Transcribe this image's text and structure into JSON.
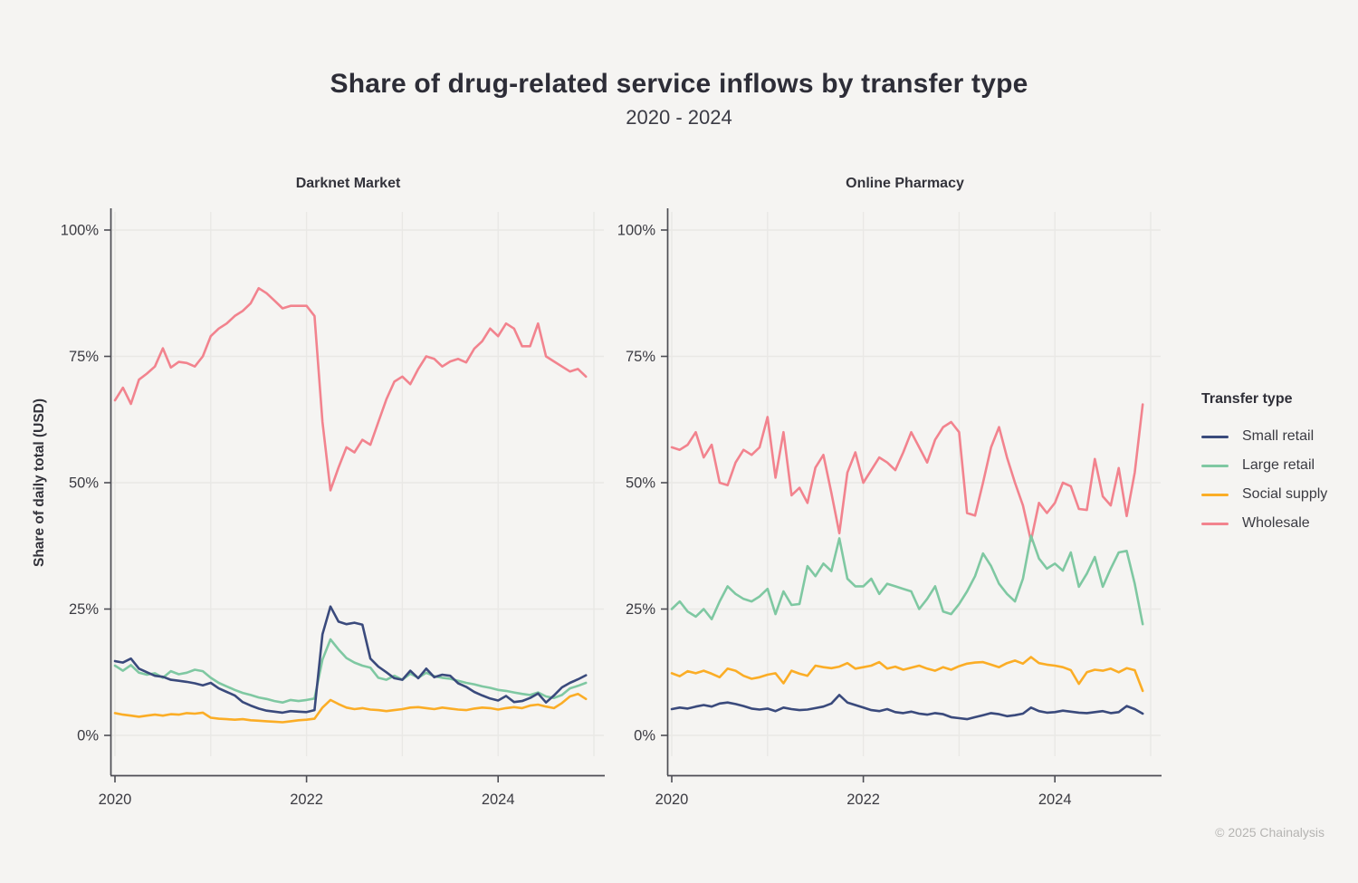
{
  "page": {
    "title": "Share of drug-related service inflows by transfer type",
    "subtitle": "2020 - 2024",
    "footer": "© 2025 Chainalysis"
  },
  "theme": {
    "background": "#f5f4f2",
    "grid_color": "#e9e8e5",
    "axis_color": "#4d4d54",
    "tick_text_color": "#3b3b42"
  },
  "y_axis_title": "Share of daily total (USD)",
  "legend": {
    "title": "Transfer type",
    "position": "right",
    "items": [
      {
        "label": "Small retail",
        "color": "#3a4a7c"
      },
      {
        "label": "Large retail",
        "color": "#7fc8a2"
      },
      {
        "label": "Social supply",
        "color": "#fbad26"
      },
      {
        "label": "Wholesale",
        "color": "#f2838e"
      }
    ]
  },
  "chart_data": [
    {
      "type": "line",
      "title": "Darknet Market",
      "xlabel": "",
      "ylabel": "Share of daily total (USD)",
      "ylim": [
        0,
        100
      ],
      "grid": true,
      "x_unit": "month",
      "x_start_year": 2020,
      "points_per_year": 12,
      "x_gridline_years": [
        2020,
        2021,
        2022,
        2023,
        2024,
        2025
      ],
      "x_ticks": [
        {
          "year": 2020,
          "label": "2020"
        },
        {
          "year": 2022,
          "label": "2022"
        },
        {
          "year": 2024,
          "label": "2024"
        }
      ],
      "y_ticks": [
        {
          "value": 0,
          "label": "0%"
        },
        {
          "value": 25,
          "label": "25%"
        },
        {
          "value": 50,
          "label": "50%"
        },
        {
          "value": 75,
          "label": "75%"
        },
        {
          "value": 100,
          "label": "100%"
        }
      ],
      "series": [
        {
          "name": "Small retail",
          "color": "#3a4a7c",
          "values": [
            14.7,
            14.4,
            15.2,
            13.2,
            12.5,
            11.8,
            11.6,
            11.0,
            10.8,
            10.6,
            10.3,
            9.9,
            10.4,
            9.3,
            8.6,
            7.9,
            6.6,
            5.9,
            5.3,
            4.9,
            4.7,
            4.5,
            4.8,
            4.7,
            4.6,
            5.0,
            20.0,
            25.5,
            22.5,
            22.0,
            22.3,
            21.9,
            15.2,
            13.6,
            12.5,
            11.3,
            11.0,
            12.8,
            11.3,
            13.2,
            11.5,
            12.0,
            11.8,
            10.3,
            9.6,
            8.6,
            7.9,
            7.3,
            6.9,
            7.8,
            6.6,
            6.8,
            7.4,
            8.3,
            6.5,
            7.9,
            9.5,
            10.4,
            11.1,
            11.9
          ]
        },
        {
          "name": "Large retail",
          "color": "#7fc8a2",
          "values": [
            13.8,
            12.8,
            13.9,
            12.4,
            12.0,
            12.3,
            11.4,
            12.7,
            12.1,
            12.4,
            13.0,
            12.7,
            11.4,
            10.4,
            9.7,
            9.0,
            8.4,
            8.0,
            7.5,
            7.2,
            6.8,
            6.5,
            7.0,
            6.8,
            7.0,
            7.3,
            15.0,
            19.0,
            17.0,
            15.3,
            14.4,
            13.8,
            13.4,
            11.4,
            11.0,
            11.8,
            11.0,
            12.2,
            11.4,
            12.4,
            11.7,
            11.4,
            11.2,
            10.8,
            10.4,
            10.1,
            9.7,
            9.4,
            9.0,
            8.8,
            8.5,
            8.2,
            8.0,
            8.5,
            7.7,
            7.4,
            8.0,
            9.3,
            9.8,
            10.4
          ]
        },
        {
          "name": "Social supply",
          "color": "#fbad26",
          "values": [
            4.4,
            4.1,
            3.9,
            3.7,
            3.9,
            4.1,
            3.9,
            4.2,
            4.1,
            4.4,
            4.3,
            4.5,
            3.5,
            3.3,
            3.2,
            3.1,
            3.2,
            3.0,
            2.9,
            2.8,
            2.7,
            2.6,
            2.8,
            3.0,
            3.1,
            3.3,
            5.5,
            7.0,
            6.2,
            5.5,
            5.2,
            5.4,
            5.1,
            5.0,
            4.8,
            5.0,
            5.2,
            5.5,
            5.6,
            5.4,
            5.2,
            5.5,
            5.3,
            5.1,
            5.0,
            5.3,
            5.5,
            5.4,
            5.1,
            5.4,
            5.6,
            5.4,
            5.9,
            6.1,
            5.7,
            5.4,
            6.4,
            7.7,
            8.2,
            7.2
          ]
        },
        {
          "name": "Wholesale",
          "color": "#f2838e",
          "values": [
            66.3,
            68.8,
            65.6,
            70.4,
            71.6,
            73.0,
            76.6,
            72.8,
            73.9,
            73.7,
            73.0,
            75.0,
            79.0,
            80.5,
            81.5,
            83.0,
            84.0,
            85.5,
            88.5,
            87.5,
            86.0,
            84.5,
            85.0,
            85.0,
            85.0,
            83.0,
            62.0,
            48.5,
            53.0,
            57.0,
            56.0,
            58.5,
            57.5,
            62.0,
            66.5,
            70.0,
            71.0,
            69.5,
            72.5,
            75.0,
            74.5,
            73.0,
            74.0,
            74.5,
            73.8,
            76.5,
            78.0,
            80.5,
            79.0,
            81.5,
            80.5,
            77.0,
            77.0,
            81.5,
            75.0,
            74.0,
            73.0,
            72.0,
            72.5,
            71.0
          ]
        }
      ]
    },
    {
      "type": "line",
      "title": "Online Pharmacy",
      "xlabel": "",
      "ylabel": "Share of daily total (USD)",
      "ylim": [
        0,
        100
      ],
      "grid": true,
      "x_unit": "month",
      "x_start_year": 2020,
      "points_per_year": 12,
      "x_gridline_years": [
        2020,
        2021,
        2022,
        2023,
        2024,
        2025
      ],
      "x_ticks": [
        {
          "year": 2020,
          "label": "2020"
        },
        {
          "year": 2022,
          "label": "2022"
        },
        {
          "year": 2024,
          "label": "2024"
        }
      ],
      "y_ticks": [
        {
          "value": 0,
          "label": "0%"
        },
        {
          "value": 25,
          "label": "25%"
        },
        {
          "value": 50,
          "label": "50%"
        },
        {
          "value": 75,
          "label": "75%"
        },
        {
          "value": 100,
          "label": "100%"
        }
      ],
      "series": [
        {
          "name": "Small retail",
          "color": "#3a4a7c",
          "values": [
            5.2,
            5.5,
            5.3,
            5.7,
            6.0,
            5.7,
            6.3,
            6.5,
            6.2,
            5.8,
            5.3,
            5.1,
            5.3,
            4.8,
            5.5,
            5.2,
            5.0,
            5.1,
            5.4,
            5.7,
            6.3,
            8.0,
            6.5,
            6.0,
            5.5,
            5.0,
            4.8,
            5.2,
            4.6,
            4.4,
            4.7,
            4.3,
            4.1,
            4.4,
            4.2,
            3.6,
            3.4,
            3.2,
            3.6,
            4.0,
            4.4,
            4.2,
            3.8,
            4.0,
            4.3,
            5.5,
            4.8,
            4.5,
            4.6,
            4.9,
            4.7,
            4.5,
            4.4,
            4.6,
            4.8,
            4.4,
            4.6,
            5.8,
            5.2,
            4.3
          ]
        },
        {
          "name": "Large retail",
          "color": "#7fc8a2",
          "values": [
            25.0,
            26.5,
            24.5,
            23.5,
            25.0,
            23.0,
            26.5,
            29.5,
            28.0,
            27.0,
            26.5,
            27.5,
            29.0,
            24.0,
            28.5,
            25.8,
            26.0,
            33.5,
            31.5,
            34.0,
            32.5,
            39.0,
            31.0,
            29.5,
            29.5,
            31.0,
            28.0,
            30.0,
            29.5,
            29.0,
            28.5,
            25.0,
            27.0,
            29.5,
            24.5,
            24.0,
            26.0,
            28.5,
            31.5,
            36.0,
            33.5,
            30.0,
            28.0,
            26.5,
            31.0,
            39.5,
            35.0,
            33.0,
            34.0,
            32.6,
            36.2,
            29.4,
            32.0,
            35.3,
            29.4,
            33.0,
            36.2,
            36.5,
            30.0,
            22.0
          ]
        },
        {
          "name": "Social supply",
          "color": "#fbad26",
          "values": [
            12.3,
            11.7,
            12.7,
            12.3,
            12.8,
            12.2,
            11.5,
            13.2,
            12.8,
            11.8,
            11.2,
            11.5,
            12.0,
            12.3,
            10.3,
            12.8,
            12.2,
            11.8,
            13.8,
            13.5,
            13.3,
            13.6,
            14.3,
            13.2,
            13.5,
            13.8,
            14.5,
            13.2,
            13.6,
            13.0,
            13.4,
            13.8,
            13.2,
            12.8,
            13.5,
            13.0,
            13.7,
            14.2,
            14.4,
            14.5,
            14.0,
            13.5,
            14.3,
            14.8,
            14.2,
            15.5,
            14.3,
            14.0,
            13.8,
            13.5,
            12.9,
            10.2,
            12.5,
            13.0,
            12.8,
            13.2,
            12.5,
            13.3,
            12.9,
            8.8
          ]
        },
        {
          "name": "Wholesale",
          "color": "#f2838e",
          "values": [
            57.0,
            56.5,
            57.5,
            60.0,
            55.0,
            57.5,
            50.0,
            49.5,
            54.0,
            56.5,
            55.5,
            57.0,
            63.0,
            51.0,
            60.0,
            47.5,
            49.0,
            46.0,
            53.0,
            55.5,
            48.0,
            40.0,
            52.0,
            56.0,
            50.0,
            52.5,
            55.0,
            54.0,
            52.5,
            56.0,
            60.0,
            57.0,
            54.0,
            58.5,
            61.0,
            62.0,
            60.0,
            44.0,
            43.5,
            50.0,
            57.0,
            61.0,
            55.0,
            50.0,
            45.5,
            38.5,
            46.0,
            44.0,
            46.0,
            50.0,
            49.3,
            44.8,
            44.6,
            54.7,
            47.3,
            45.5,
            52.9,
            43.4,
            52.0,
            65.5
          ]
        }
      ]
    }
  ]
}
